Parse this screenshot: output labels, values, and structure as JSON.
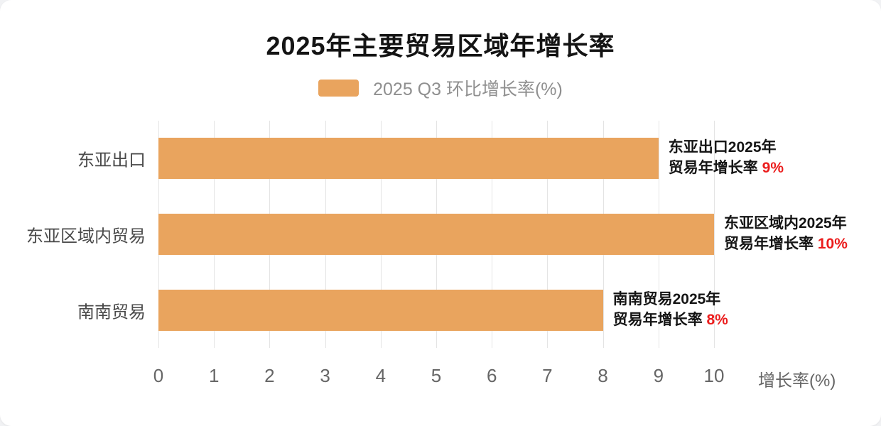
{
  "title": "2025年主要贸易区域年增长率",
  "legend": {
    "label": "2025 Q3 环比增长率(%)"
  },
  "colors": {
    "bar": "#e9a45e",
    "highlight": "#eb1d1d"
  },
  "x_axis": {
    "label": "增长率(%)",
    "ticks": [
      "0",
      "1",
      "2",
      "3",
      "4",
      "5",
      "6",
      "7",
      "8",
      "9",
      "10"
    ]
  },
  "chart_data": {
    "type": "bar",
    "orientation": "horizontal",
    "title": "2025年主要贸易区域年增长率",
    "series_name": "2025 Q3 环比增长率(%)",
    "categories": [
      "东亚出口",
      "东亚区域内贸易",
      "南南贸易"
    ],
    "values": [
      9,
      10,
      8
    ],
    "xlim": [
      0,
      10
    ],
    "xlabel": "增长率(%)",
    "grid": true,
    "legend_position": "top",
    "annotations": [
      {
        "line1": "东亚出口2025年",
        "line2": "贸易年增长率 ",
        "highlight": "9%"
      },
      {
        "line1": "东亚区域内2025年",
        "line2": "贸易年增长率 ",
        "highlight": "10%"
      },
      {
        "line1": "南南贸易2025年",
        "line2": "贸易年增长率 ",
        "highlight": "8%"
      }
    ]
  }
}
